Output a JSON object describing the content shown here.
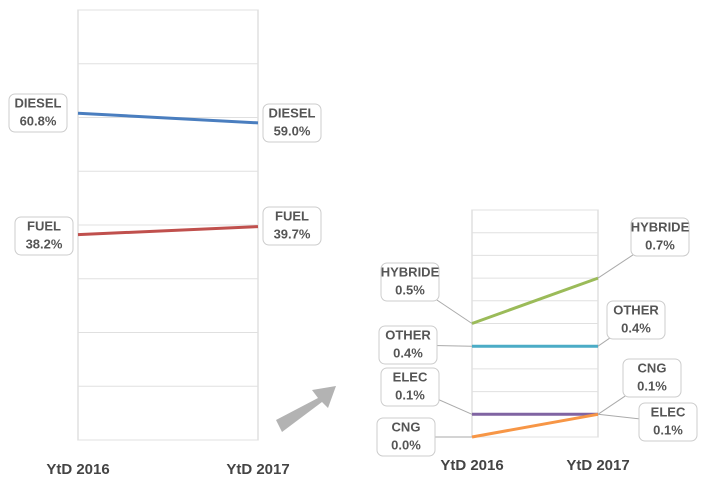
{
  "chart_data": [
    {
      "type": "line",
      "categories": [
        "YtD 2016",
        "YtD 2017"
      ],
      "ylim": [
        0,
        80
      ],
      "yticks": [
        0,
        10,
        20,
        30,
        40,
        50,
        60,
        70,
        80
      ],
      "grid": true,
      "series": [
        {
          "name": "DIESEL",
          "color": "#4a7ebf",
          "values": [
            60.8,
            59.0
          ],
          "value_labels": [
            "60.8%",
            "59.0%"
          ]
        },
        {
          "name": "FUEL",
          "color": "#c0504d",
          "values": [
            38.2,
            39.7
          ],
          "value_labels": [
            "38.2%",
            "39.7%"
          ]
        }
      ]
    },
    {
      "type": "line",
      "categories": [
        "YtD 2016",
        "YtD 2017"
      ],
      "ylim": [
        0,
        1
      ],
      "yticks": [
        0,
        0.1,
        0.2,
        0.3,
        0.4,
        0.5,
        0.6,
        0.7,
        0.8,
        0.9,
        1
      ],
      "grid": true,
      "series": [
        {
          "name": "HYBRIDE",
          "color": "#9bbb59",
          "values": [
            0.5,
            0.7
          ],
          "value_labels": [
            "0.5%",
            "0.7%"
          ]
        },
        {
          "name": "OTHER",
          "color": "#4bacc6",
          "values": [
            0.4,
            0.4
          ],
          "value_labels": [
            "0.4%",
            "0.4%"
          ]
        },
        {
          "name": "ELEC",
          "color": "#8064a2",
          "values": [
            0.1,
            0.1
          ],
          "value_labels": [
            "0.1%",
            "0.1%"
          ]
        },
        {
          "name": "CNG",
          "color": "#f79646",
          "values": [
            0.0,
            0.1
          ],
          "value_labels": [
            "0.0%",
            "0.1%"
          ]
        }
      ]
    }
  ]
}
